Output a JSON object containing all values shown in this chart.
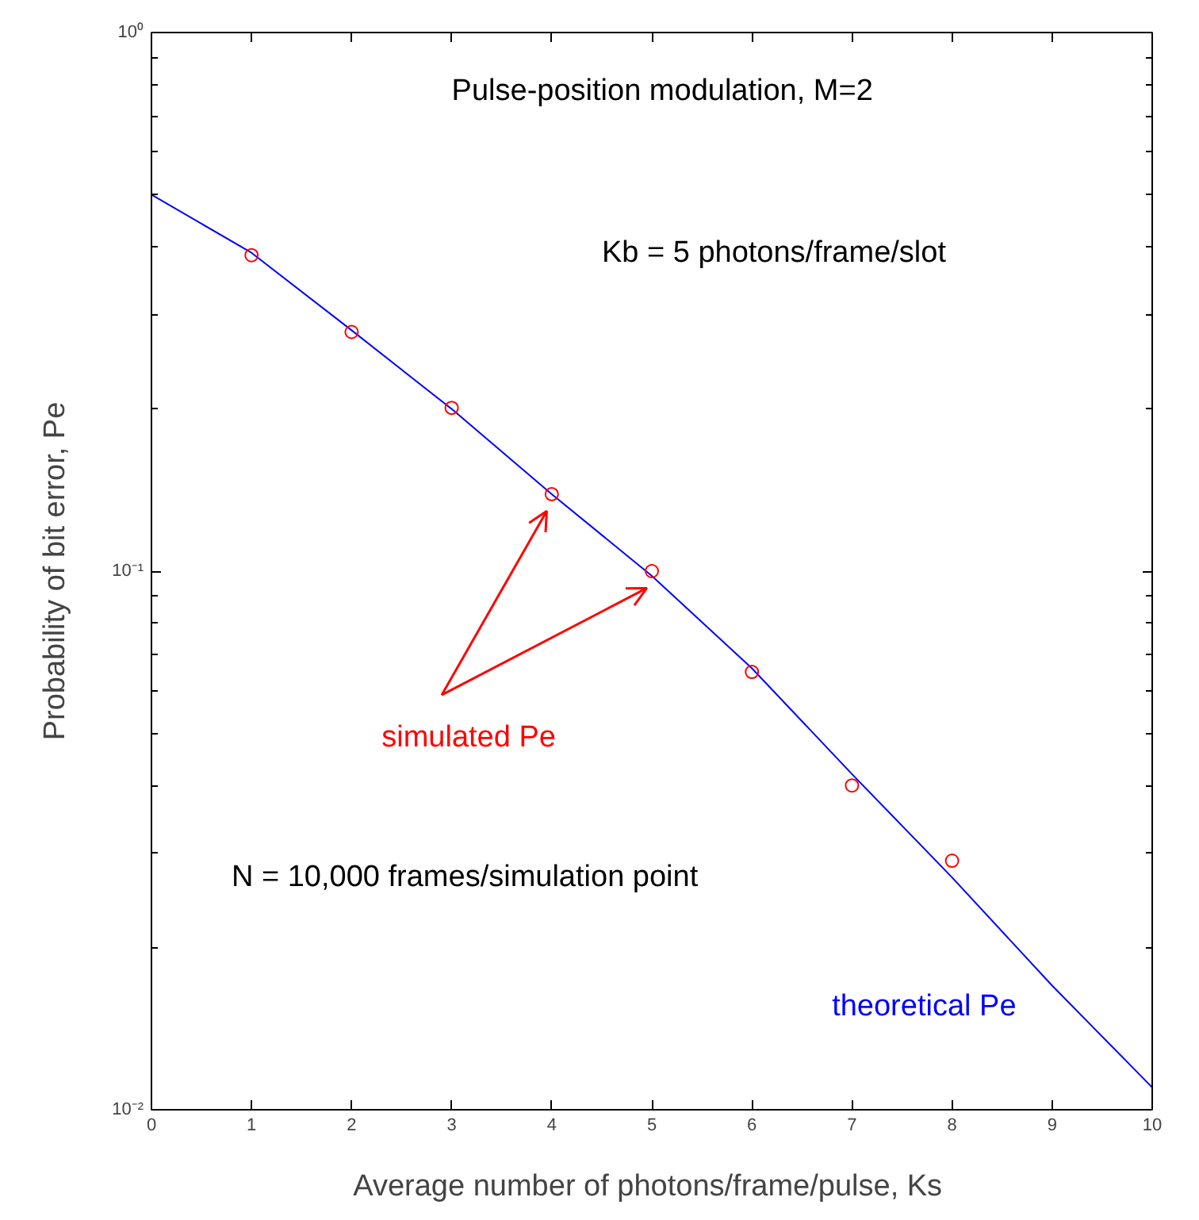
{
  "chart_data": {
    "type": "line",
    "xlabel": "Average number of photons/frame/pulse,  Ks",
    "ylabel": "Probability of bit error, Pe",
    "xlim": [
      0,
      10
    ],
    "xticks": [
      0,
      1,
      2,
      3,
      4,
      5,
      6,
      7,
      8,
      9,
      10
    ],
    "ylim": [
      0.01,
      1
    ],
    "yticks": [
      {
        "value": 0.01,
        "label": "10⁻²"
      },
      {
        "value": 0.1,
        "label": "10⁻¹"
      },
      {
        "value": 1,
        "label": "10⁰"
      }
    ],
    "log": "y",
    "grid": false,
    "series": [
      {
        "name": "theoretical Pe",
        "color": "#0000ff",
        "marker": "none",
        "x": [
          0,
          1,
          2,
          3,
          4,
          5,
          6,
          7,
          8,
          9,
          10
        ],
        "values": [
          0.5,
          0.39,
          0.28,
          0.2,
          0.139,
          0.098,
          0.066,
          0.042,
          0.027,
          0.017,
          0.011
        ]
      },
      {
        "name": "simulated Pe",
        "type": "scatter",
        "color": "#ff0000",
        "marker": "circle",
        "x": [
          1,
          2,
          3,
          4,
          5,
          6,
          7,
          8
        ],
        "values": [
          0.386,
          0.278,
          0.201,
          0.139,
          0.1,
          0.065,
          0.04,
          0.029
        ]
      }
    ],
    "annotations": [
      "Pulse-position modulation, M=2",
      "Kb = 5 photons/frame/slot",
      "N = 10,000 frames/simulation point"
    ]
  }
}
